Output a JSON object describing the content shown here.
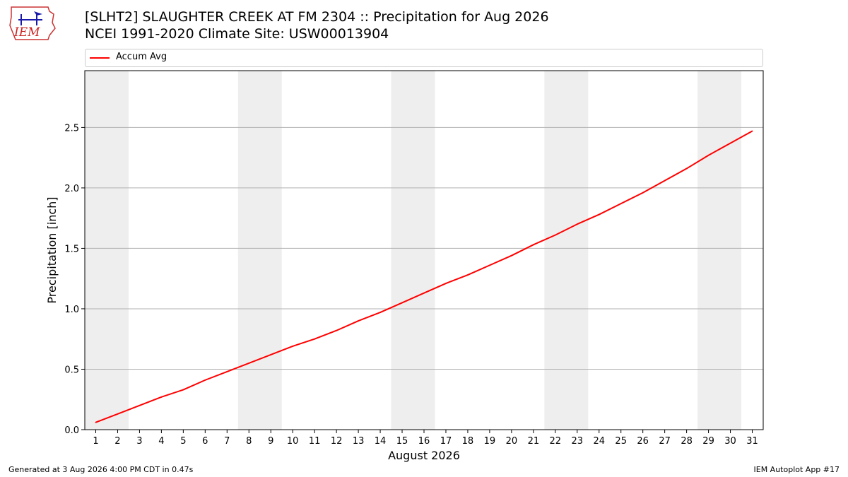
{
  "title": {
    "line1": "[SLHT2] SLAUGHTER CREEK AT FM 2304 :: Precipitation for Aug 2026",
    "line2": "NCEI 1991-2020 Climate Site: USW00013904"
  },
  "logo": {
    "text": "IEM"
  },
  "footer": {
    "left": "Generated at 3 Aug 2026 4:00 PM CDT in 0.47s",
    "right": "IEM Autoplot App #17"
  },
  "colors": {
    "line": "#ff0000",
    "weekend_shade": "#eeeeee",
    "grid": "#b0b0b0"
  },
  "chart_data": {
    "type": "line",
    "xlabel": "August 2026",
    "ylabel": "Precipitation [inch]",
    "xlim": [
      0.5,
      31.5
    ],
    "ylim": [
      0,
      2.97
    ],
    "yticks": [
      0.0,
      0.5,
      1.0,
      1.5,
      2.0,
      2.5
    ],
    "ytick_labels": [
      "0.0",
      "0.5",
      "1.0",
      "1.5",
      "2.0",
      "2.5"
    ],
    "x": [
      1,
      2,
      3,
      4,
      5,
      6,
      7,
      8,
      9,
      10,
      11,
      12,
      13,
      14,
      15,
      16,
      17,
      18,
      19,
      20,
      21,
      22,
      23,
      24,
      25,
      26,
      27,
      28,
      29,
      30,
      31
    ],
    "xtick_labels": [
      "1",
      "2",
      "3",
      "4",
      "5",
      "6",
      "7",
      "8",
      "9",
      "10",
      "11",
      "12",
      "13",
      "14",
      "15",
      "16",
      "17",
      "18",
      "19",
      "20",
      "21",
      "22",
      "23",
      "24",
      "25",
      "26",
      "27",
      "28",
      "29",
      "30",
      "31"
    ],
    "grid": "horizontal",
    "legend_position": "top",
    "shaded_days": [
      [
        1,
        2
      ],
      [
        8,
        9
      ],
      [
        15,
        16
      ],
      [
        22,
        23
      ],
      [
        29,
        30
      ]
    ],
    "series": [
      {
        "name": "Accum Avg",
        "color": "#ff0000",
        "values": [
          0.06,
          0.13,
          0.2,
          0.27,
          0.33,
          0.41,
          0.48,
          0.55,
          0.62,
          0.69,
          0.75,
          0.82,
          0.9,
          0.97,
          1.05,
          1.13,
          1.21,
          1.28,
          1.36,
          1.44,
          1.53,
          1.61,
          1.7,
          1.78,
          1.87,
          1.96,
          2.06,
          2.16,
          2.27,
          2.37,
          2.47
        ]
      }
    ]
  }
}
